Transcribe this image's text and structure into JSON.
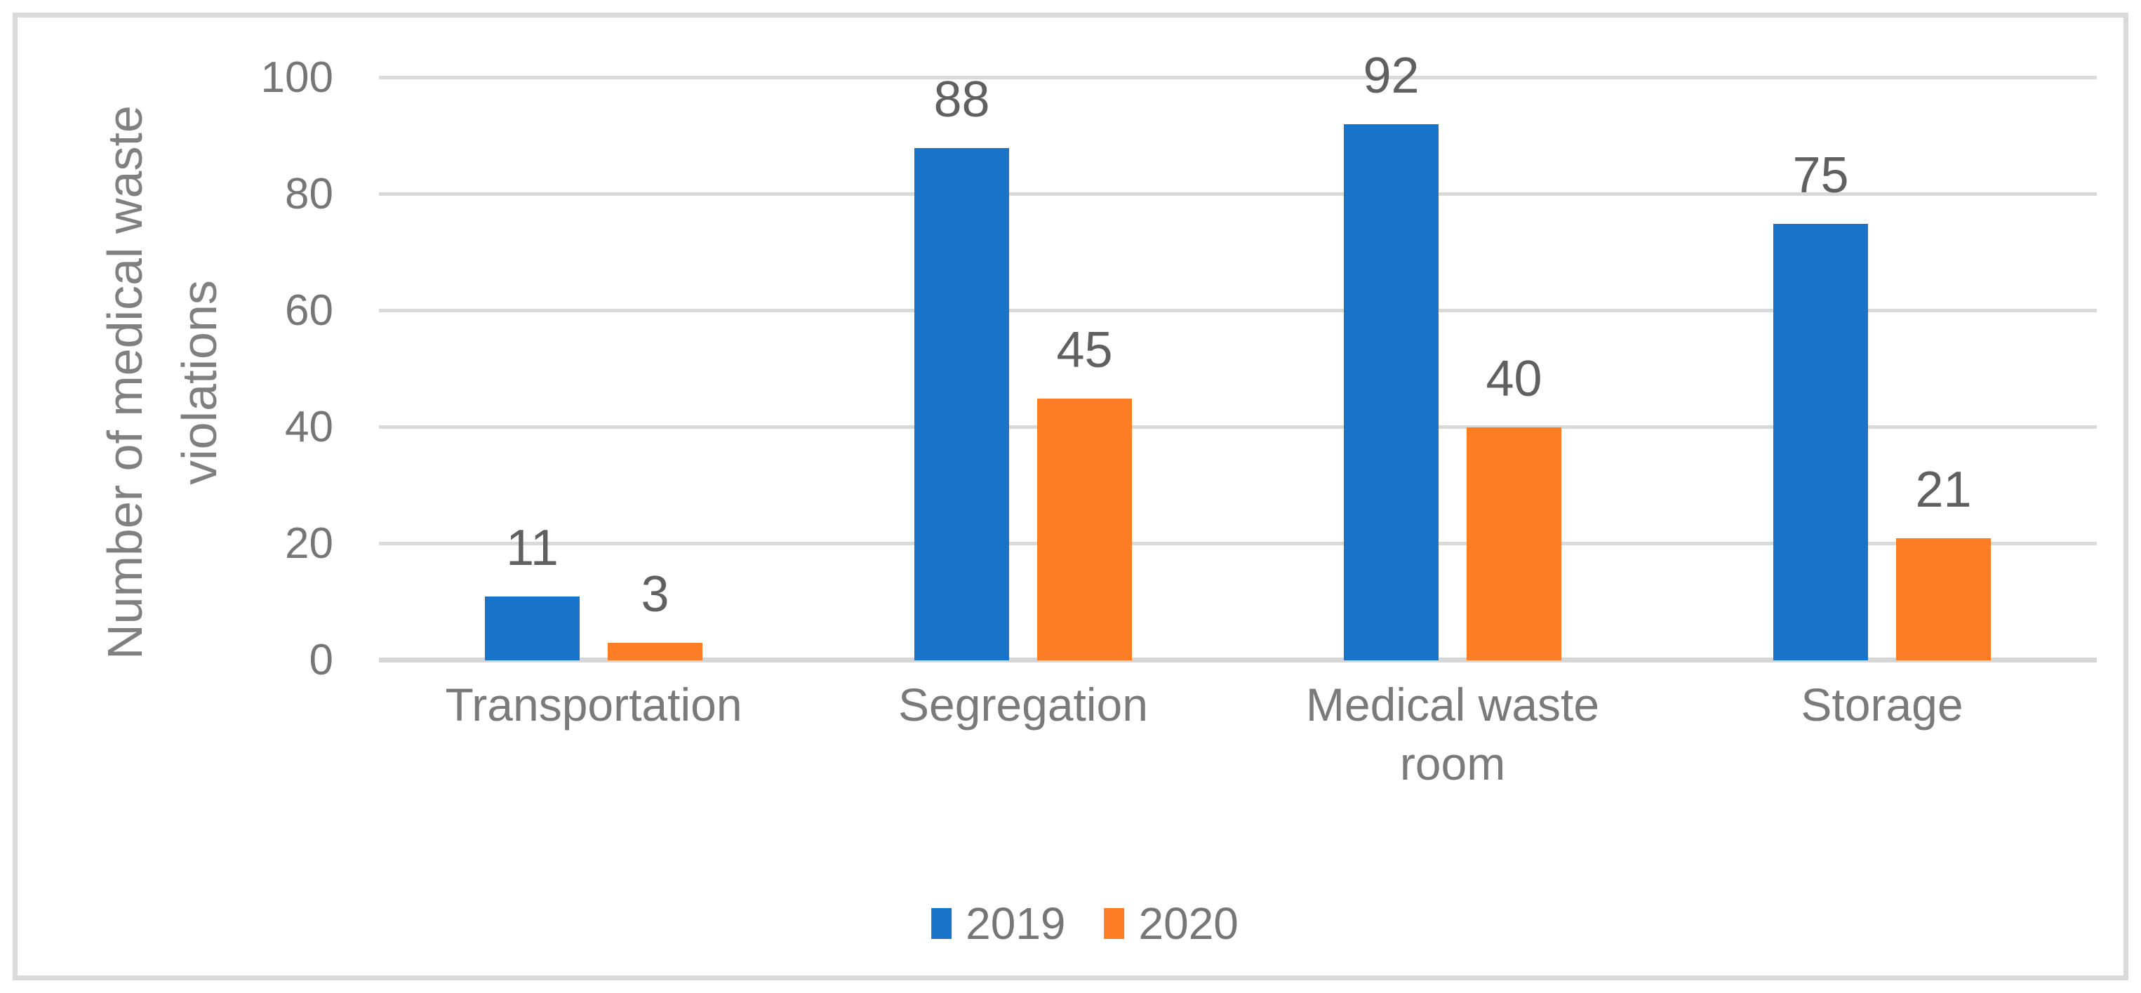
{
  "chart_data": {
    "type": "bar",
    "categories": [
      "Transportation",
      "Segregation",
      "Medical waste room",
      "Storage"
    ],
    "category_label_lines": [
      [
        "Transportation"
      ],
      [
        "Segregation"
      ],
      [
        "Medical waste",
        "room"
      ],
      [
        "Storage"
      ]
    ],
    "series": [
      {
        "name": "2019",
        "color": "#1973C8",
        "values": [
          11,
          88,
          92,
          75
        ]
      },
      {
        "name": "2020",
        "color": "#FD7D27",
        "values": [
          3,
          45,
          40,
          21
        ]
      }
    ],
    "ylabel": "Number of medical waste violations",
    "ylabel_lines": [
      "Number of medical waste",
      "violations"
    ],
    "yticks": [
      0,
      20,
      40,
      60,
      80,
      100
    ],
    "ylim": [
      0,
      100
    ],
    "grid": true,
    "legend_position": "bottom",
    "data_labels": true,
    "styles": {
      "gridline_color": "#D9D9D9",
      "frame_color": "#D9D9D9",
      "axis_text_color": "#767676",
      "category_text_color": "#7a7a7a",
      "data_label_color": "#606060",
      "ylabel_color": "#808080"
    }
  }
}
